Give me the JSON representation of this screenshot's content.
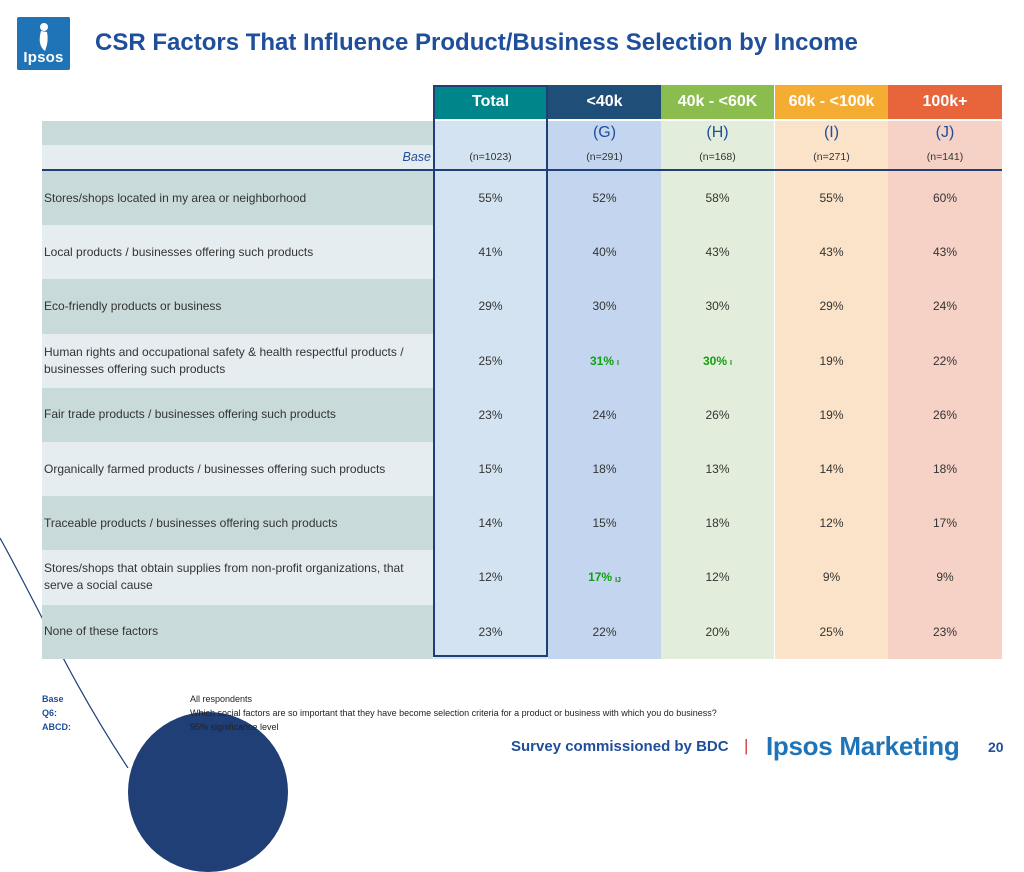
{
  "logo": {
    "text": "Ipsos"
  },
  "title": "CSR Factors That Influence Product/Business Selection by Income",
  "colors": {
    "total_head": "#00858a",
    "g_head": "#1f4e79",
    "h_head": "#8bbd4e",
    "i_head": "#f5ac32",
    "j_head": "#e8643a",
    "label_dark": "#c9dada",
    "label_light": "#e6edf0",
    "total_body": "#d4e3f1",
    "g_body": "#c4d6ef",
    "h_body": "#e2eedb",
    "i_body": "#fbe3c9",
    "j_body": "#f6d2c6",
    "frame": "#1f3f76"
  },
  "columns": [
    {
      "key": "total",
      "header": "Total",
      "letter": "",
      "n": "(n=1023)"
    },
    {
      "key": "g",
      "header": "<40k",
      "letter": "(G)",
      "n": "(n=291)"
    },
    {
      "key": "h",
      "header": "40k - <60K",
      "letter": "(H)",
      "n": "(n=168)"
    },
    {
      "key": "i",
      "header": "60k - <100k",
      "letter": "(I)",
      "n": "(n=271)"
    },
    {
      "key": "j",
      "header": "100k+",
      "letter": "(J)",
      "n": "(n=141)"
    }
  ],
  "base_label": "Base",
  "rows": [
    {
      "label": "Stores/shops located in my area or neighborhood",
      "values": [
        "55%",
        "52%",
        "58%",
        "55%",
        "60%"
      ],
      "sig": [
        "",
        "",
        "",
        "",
        ""
      ]
    },
    {
      "label": "Local products / businesses offering such products",
      "values": [
        "41%",
        "40%",
        "43%",
        "43%",
        "43%"
      ],
      "sig": [
        "",
        "",
        "",
        "",
        ""
      ]
    },
    {
      "label": "Eco-friendly products or business",
      "values": [
        "29%",
        "30%",
        "30%",
        "29%",
        "24%"
      ],
      "sig": [
        "",
        "",
        "",
        "",
        ""
      ]
    },
    {
      "label": "Human rights and occupational safety & health respectful products / businesses offering such products",
      "values": [
        "25%",
        "31%",
        "30%",
        "19%",
        "22%"
      ],
      "sig": [
        "",
        "I",
        "I",
        "",
        ""
      ]
    },
    {
      "label": "Fair trade products / businesses offering such products",
      "values": [
        "23%",
        "24%",
        "26%",
        "19%",
        "26%"
      ],
      "sig": [
        "",
        "",
        "",
        "",
        ""
      ]
    },
    {
      "label": "Organically farmed products / businesses offering such products",
      "values": [
        "15%",
        "18%",
        "13%",
        "14%",
        "18%"
      ],
      "sig": [
        "",
        "",
        "",
        "",
        ""
      ]
    },
    {
      "label": "Traceable products / businesses offering such products",
      "values": [
        "14%",
        "15%",
        "18%",
        "12%",
        "17%"
      ],
      "sig": [
        "",
        "",
        "",
        "",
        ""
      ]
    },
    {
      "label": "Stores/shops that obtain supplies from non-profit organizations, that serve a social cause",
      "values": [
        "12%",
        "17%",
        "12%",
        "9%",
        "9%"
      ],
      "sig": [
        "",
        "IJ",
        "",
        "",
        ""
      ]
    },
    {
      "label": "None of these factors",
      "values": [
        "23%",
        "22%",
        "20%",
        "25%",
        "23%"
      ],
      "sig": [
        "",
        "",
        "",
        "",
        ""
      ]
    }
  ],
  "notes": [
    {
      "key": "Base",
      "value": "All respondents"
    },
    {
      "key": "Q6:",
      "value": "Which social factors are so important that they have become selection criteria for a product or business with which you do business?"
    },
    {
      "key": "ABCD:",
      "value": "95% significance level"
    }
  ],
  "footer": {
    "survey": "Survey commissioned by BDC",
    "separator": "|",
    "brand": "Ipsos Marketing",
    "page": "20"
  }
}
